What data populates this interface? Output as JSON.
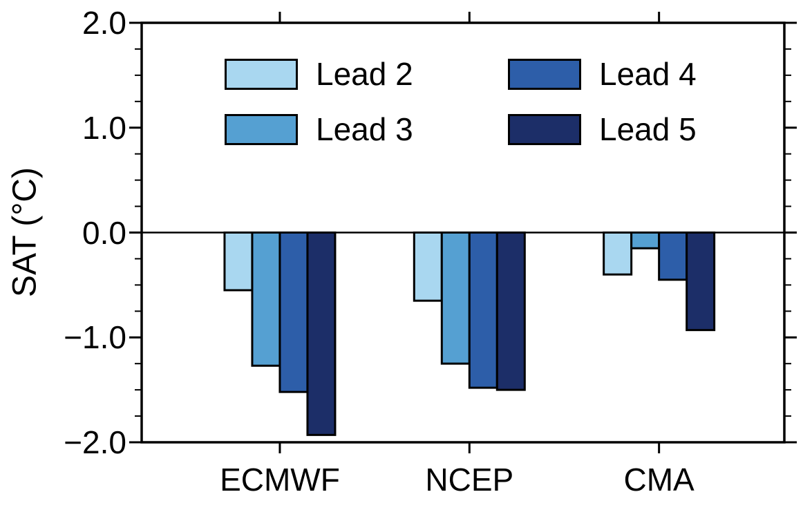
{
  "chart_data": {
    "type": "bar",
    "title": "",
    "ylabel": "SAT (°C)",
    "xlabel": "",
    "ylim": [
      -2.0,
      2.0
    ],
    "categories": [
      "ECMWF",
      "NCEP",
      "CMA"
    ],
    "ytick_values": [
      -2.0,
      -1.0,
      0.0,
      1.0,
      2.0
    ],
    "ytick_labels": [
      "−2.0",
      "−1.0",
      "0.0",
      "1.0",
      "2.0"
    ],
    "minor_tick_step": 0.25,
    "grid": false,
    "zero_line": true,
    "legend_position": "top-left-inside",
    "frame_color": "#000000",
    "background_color": "#ffffff",
    "series": [
      {
        "name": "Lead 2",
        "color": "#a9d7f0",
        "values": [
          -0.55,
          -0.65,
          -0.4
        ]
      },
      {
        "name": "Lead 3",
        "color": "#55a0d2",
        "values": [
          -1.27,
          -1.25,
          -0.15
        ]
      },
      {
        "name": "Lead 4",
        "color": "#2d5ea9",
        "values": [
          -1.52,
          -1.48,
          -0.45
        ]
      },
      {
        "name": "Lead 5",
        "color": "#1c2e68",
        "values": [
          -1.93,
          -1.5,
          -0.93
        ]
      }
    ]
  }
}
